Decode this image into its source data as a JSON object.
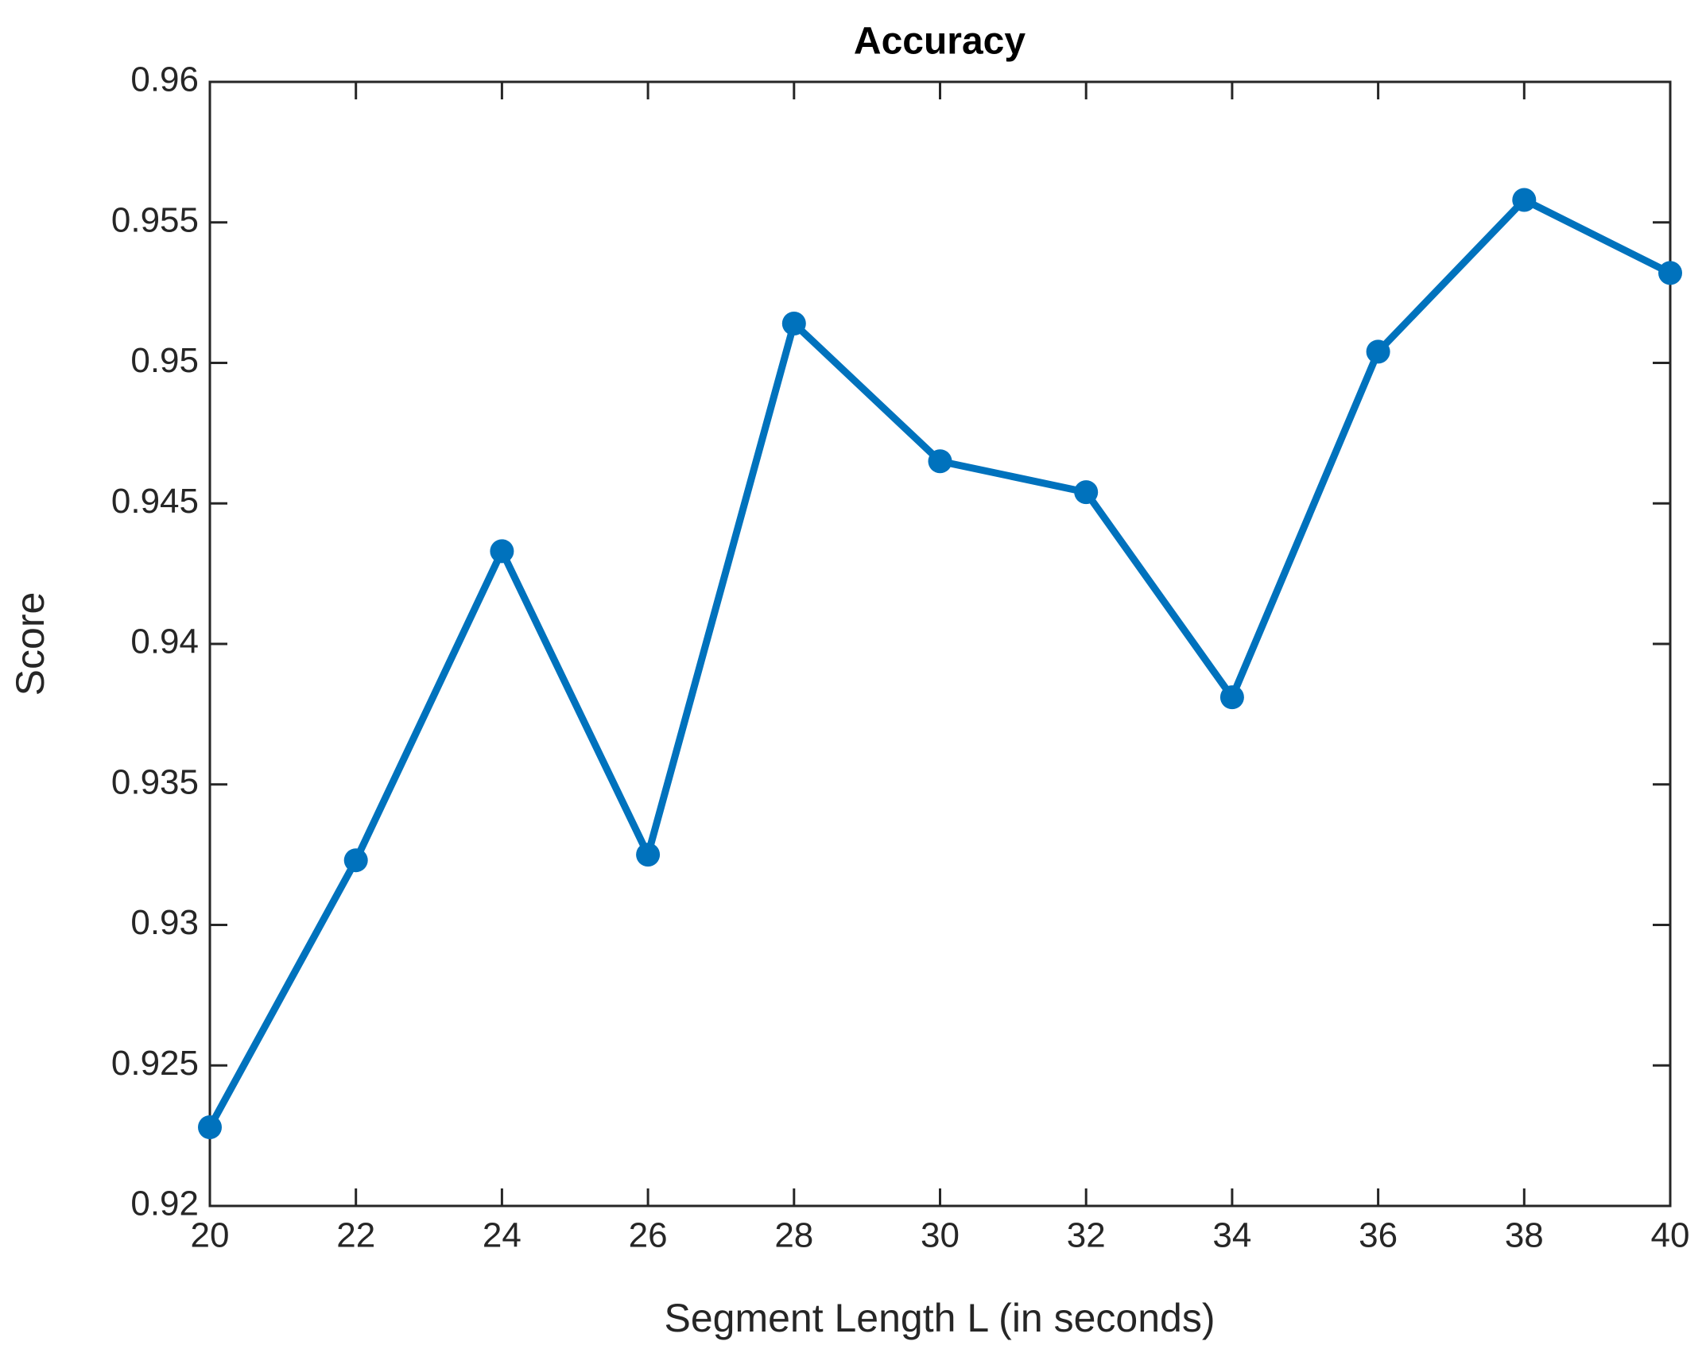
{
  "chart_data": {
    "type": "line",
    "title": "Accuracy",
    "x_label": "Segment Length L (in seconds)",
    "y_label": "Score",
    "x": [
      20,
      22,
      24,
      26,
      28,
      30,
      32,
      34,
      36,
      38,
      40
    ],
    "series": [
      {
        "name": "Accuracy",
        "color": "#0072bd",
        "values": [
          0.9228,
          0.9323,
          0.9433,
          0.9325,
          0.9514,
          0.9465,
          0.9454,
          0.9381,
          0.9504,
          0.9558,
          0.9532
        ]
      }
    ],
    "xlim": [
      20,
      40
    ],
    "xticks": [
      20,
      22,
      24,
      26,
      28,
      30,
      32,
      34,
      36,
      38,
      40
    ],
    "ylim": [
      0.92,
      0.96
    ],
    "yticks": [
      0.92,
      0.925,
      0.93,
      0.935,
      0.94,
      0.945,
      0.95,
      0.955,
      0.96
    ],
    "grid": false
  }
}
